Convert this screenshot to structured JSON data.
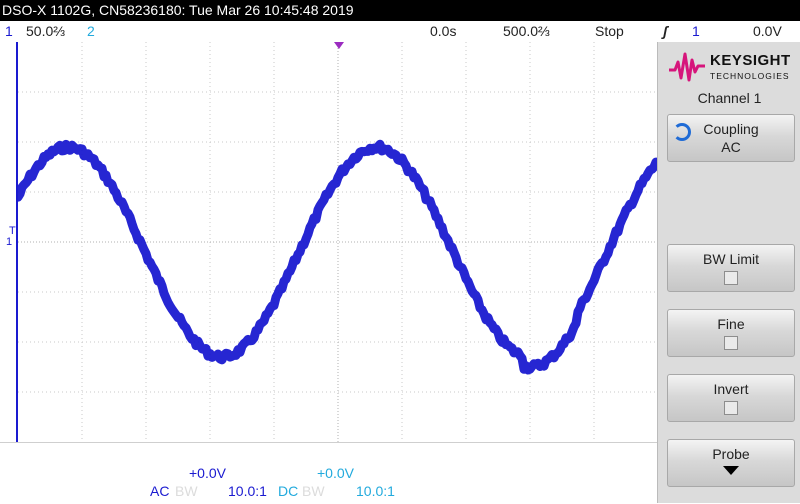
{
  "titlebar": {
    "text": "DSO-X 1102G, CN58236180: Tue Mar 26 10:45:48 2019"
  },
  "status": {
    "ch1_num": "1",
    "ch1_scale": "50.0⅔",
    "ch2_num": "2",
    "time_offset": "0.0s",
    "time_scale": "500.0⅔",
    "run_state": "Stop",
    "trigger_icon": "trigger-edge-icon",
    "trigger_symbol": "ʃ",
    "trigger_source": "1",
    "trigger_level": "0.0V"
  },
  "bottom": {
    "ch1_offset": "+0.0V",
    "ch1_coupling": "AC",
    "ch1_bw": "BW",
    "ch1_probe": "10.0:1",
    "ch2_offset": "+0.0V",
    "ch2_coupling": "DC",
    "ch2_bw": "BW",
    "ch2_probe": "10.0:1"
  },
  "panel": {
    "brand": "KEYSIGHT",
    "brand_sub": "TECHNOLOGIES",
    "title": "Channel 1",
    "coupling_label": "Coupling",
    "coupling_value": "AC",
    "bwlimit_label": "BW Limit",
    "fine_label": "Fine",
    "invert_label": "Invert",
    "probe_label": "Probe"
  },
  "markers": {
    "trigger_T": "T",
    "ch1_ground": "1"
  },
  "colors": {
    "ch1": "#1a1ad0",
    "ch2": "#22aadd",
    "accent": "#9b2cc0",
    "grid": "#c8c8c8"
  }
}
